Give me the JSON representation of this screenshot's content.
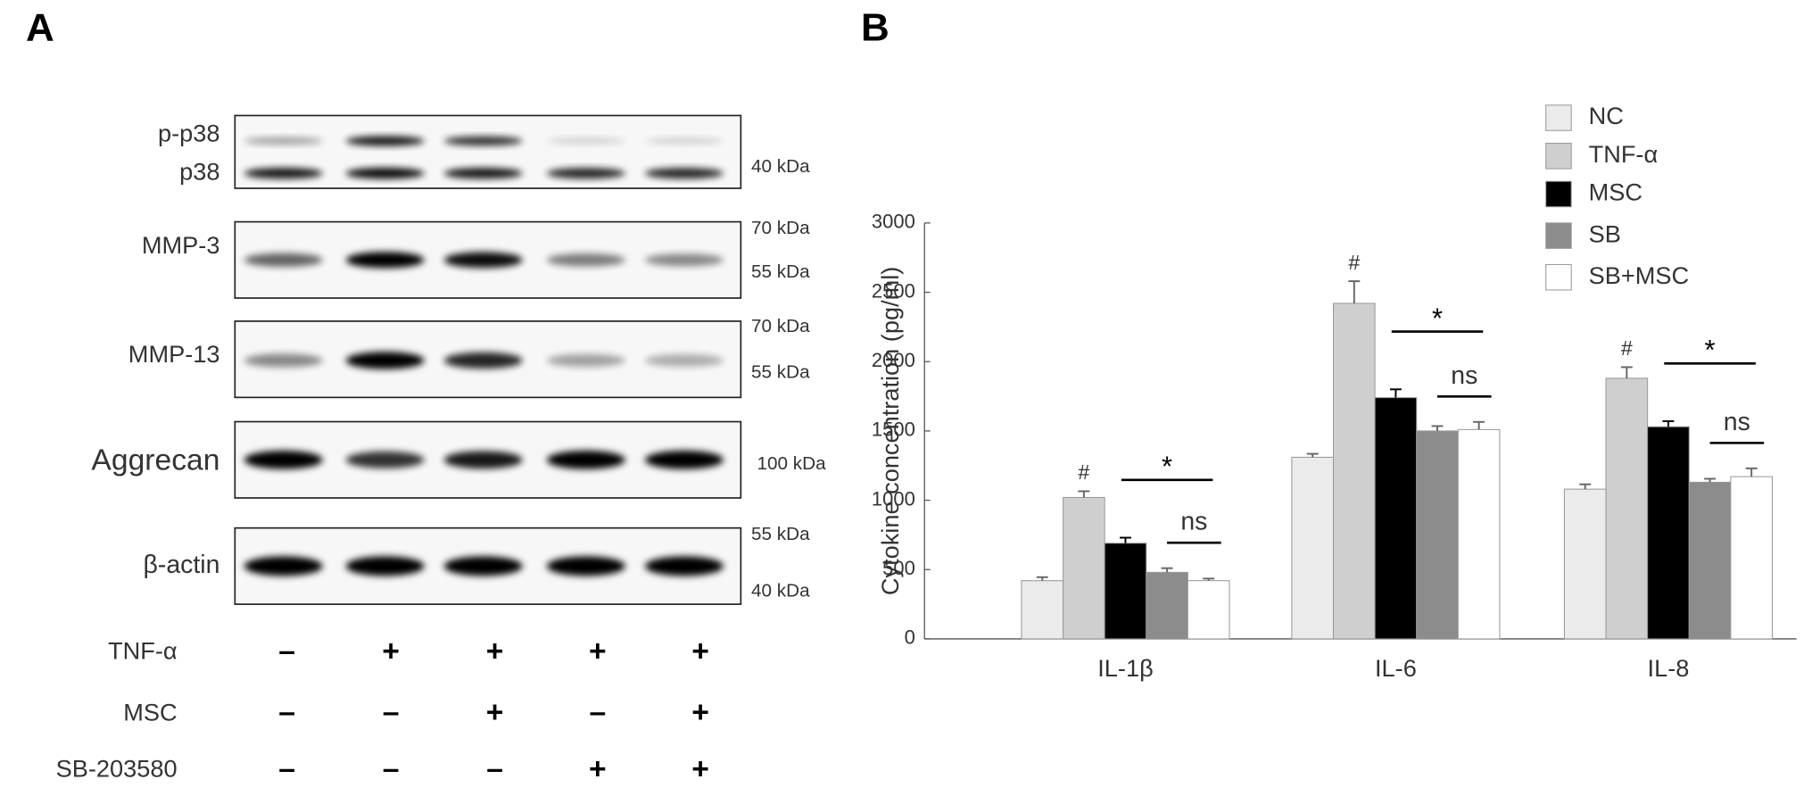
{
  "panel_a": {
    "label": "A",
    "blots": [
      {
        "labels": [
          "p-p38",
          "p38"
        ],
        "markers": [
          "40 kDa"
        ]
      },
      {
        "labels": [
          "MMP-3"
        ],
        "markers": [
          "70 kDa",
          "55 kDa"
        ]
      },
      {
        "labels": [
          "MMP-13"
        ],
        "markers": [
          "70 kDa",
          "55 kDa"
        ]
      },
      {
        "labels": [
          "Aggrecan"
        ],
        "markers": [
          "100 kDa"
        ]
      },
      {
        "labels": [
          "β-actin"
        ],
        "markers": [
          "55 kDa",
          "40 kDa"
        ]
      }
    ],
    "treatments": [
      {
        "name": "TNF-α",
        "signs": [
          "–",
          "+",
          "+",
          "+",
          "+"
        ]
      },
      {
        "name": "MSC",
        "signs": [
          "–",
          "–",
          "+",
          "–",
          "+"
        ]
      },
      {
        "name": "SB-203580",
        "signs": [
          "–",
          "–",
          "–",
          "+",
          "+"
        ]
      }
    ]
  },
  "chart_data": {
    "type": "bar",
    "label": "B",
    "y_label": "Cytokine concentration (pg/ml)",
    "categories": [
      "IL-1β",
      "IL-6",
      "IL-8"
    ],
    "series": [
      {
        "name": "NC",
        "color": "#ebebeb",
        "values": [
          420,
          1310,
          1080
        ],
        "errors": [
          25,
          25,
          35
        ]
      },
      {
        "name": "TNF-α",
        "color": "#cfcfcf",
        "values": [
          1020,
          2420,
          1880
        ],
        "errors": [
          45,
          160,
          80
        ]
      },
      {
        "name": "MSC",
        "color": "#000000",
        "values": [
          690,
          1740,
          1530
        ],
        "errors": [
          40,
          60,
          40
        ]
      },
      {
        "name": "SB",
        "color": "#8c8c8c",
        "values": [
          480,
          1500,
          1130
        ],
        "errors": [
          30,
          35,
          25
        ]
      },
      {
        "name": "SB+MSC",
        "color": "#ffffff",
        "values": [
          420,
          1510,
          1170
        ],
        "errors": [
          15,
          55,
          60
        ]
      }
    ],
    "ylim": [
      0,
      3000
    ],
    "yticks": [
      0,
      500,
      1000,
      1500,
      2000,
      2500,
      3000
    ],
    "annotations": {
      "hash": [
        "#",
        "#",
        "#"
      ],
      "star": [
        "*",
        "*",
        "*"
      ],
      "ns": [
        "ns",
        "ns",
        "ns"
      ]
    }
  }
}
